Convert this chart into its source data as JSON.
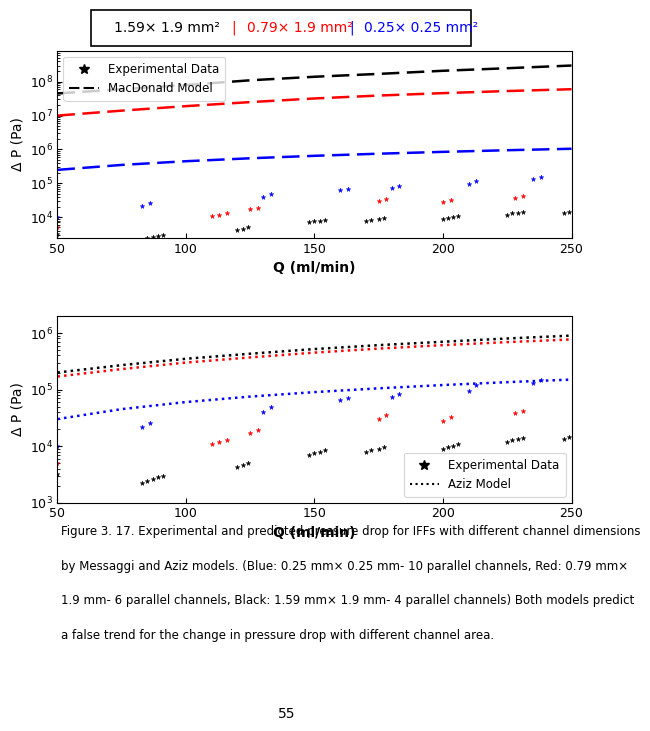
{
  "xlabel": "Q (ml/min)",
  "ylabel": "Δ P (Pa)",
  "xlim": [
    50,
    250
  ],
  "exp_black_x": [
    50,
    83,
    85,
    87,
    89,
    91,
    120,
    122,
    124,
    148,
    150,
    152,
    154,
    170,
    172,
    175,
    177,
    200,
    202,
    204,
    206,
    225,
    227,
    229,
    231,
    247,
    249
  ],
  "exp_black_y": [
    3200,
    2200,
    2400,
    2600,
    2800,
    3000,
    4200,
    4600,
    5000,
    7000,
    7500,
    8000,
    8500,
    8000,
    8500,
    9000,
    9500,
    9000,
    9500,
    10000,
    11000,
    12000,
    13000,
    13500,
    14000,
    13500,
    14500
  ],
  "exp_red_x": [
    50,
    110,
    113,
    116,
    125,
    128,
    175,
    178,
    200,
    203,
    228,
    231
  ],
  "exp_red_y": [
    5000,
    11000,
    12000,
    13000,
    17000,
    19000,
    30000,
    35000,
    28000,
    32000,
    38000,
    42000
  ],
  "exp_blue_x": [
    50,
    83,
    86,
    130,
    133,
    160,
    163,
    180,
    183,
    210,
    213,
    235,
    238
  ],
  "exp_blue_y": [
    10000,
    22000,
    26000,
    40000,
    50000,
    65000,
    70000,
    75000,
    85000,
    95000,
    120000,
    130000,
    150000
  ],
  "model_q": [
    50,
    75,
    100,
    125,
    150,
    175,
    200,
    225,
    250
  ],
  "macd_black_y": [
    45000000.0,
    60000000.0,
    80000000.0,
    110000000.0,
    140000000.0,
    170000000.0,
    210000000.0,
    250000000.0,
    300000000.0
  ],
  "macd_red_y": [
    10000000.0,
    14000000.0,
    19000000.0,
    25000000.0,
    32000000.0,
    39000000.0,
    46000000.0,
    53000000.0,
    60000000.0
  ],
  "macd_blue_y": [
    250000.0,
    350000.0,
    450000.0,
    550000.0,
    650000.0,
    750000.0,
    850000.0,
    950000.0,
    1050000.0
  ],
  "aziz_black_y": [
    200000.0,
    270000.0,
    350000.0,
    430000.0,
    520000.0,
    610000.0,
    700000.0,
    800000.0,
    900000.0
  ],
  "aziz_red_y": [
    170000.0,
    230000.0,
    300000.0,
    370000.0,
    450000.0,
    530000.0,
    610000.0,
    690000.0,
    770000.0
  ],
  "aziz_blue_y": [
    30000.0,
    45000.0,
    60000.0,
    75000.0,
    90000.0,
    105000.0,
    120000.0,
    135000.0,
    150000.0
  ],
  "caption_lines": [
    "Figure 3. 17. Experimental and predicted pressure drop for IFFs with different channel dimensions",
    "by Messaggi and Aziz models. (Blue: 0.25 mm× 0.25 mm- 10 parallel channels, Red: 0.79 mm×",
    "1.9 mm- 6 parallel channels, Black: 1.59 mm× 1.9 mm- 4 parallel channels) Both models predict",
    "a false trend for the change in pressure drop with different channel area."
  ],
  "page_number": "55",
  "background_color": "#ffffff"
}
